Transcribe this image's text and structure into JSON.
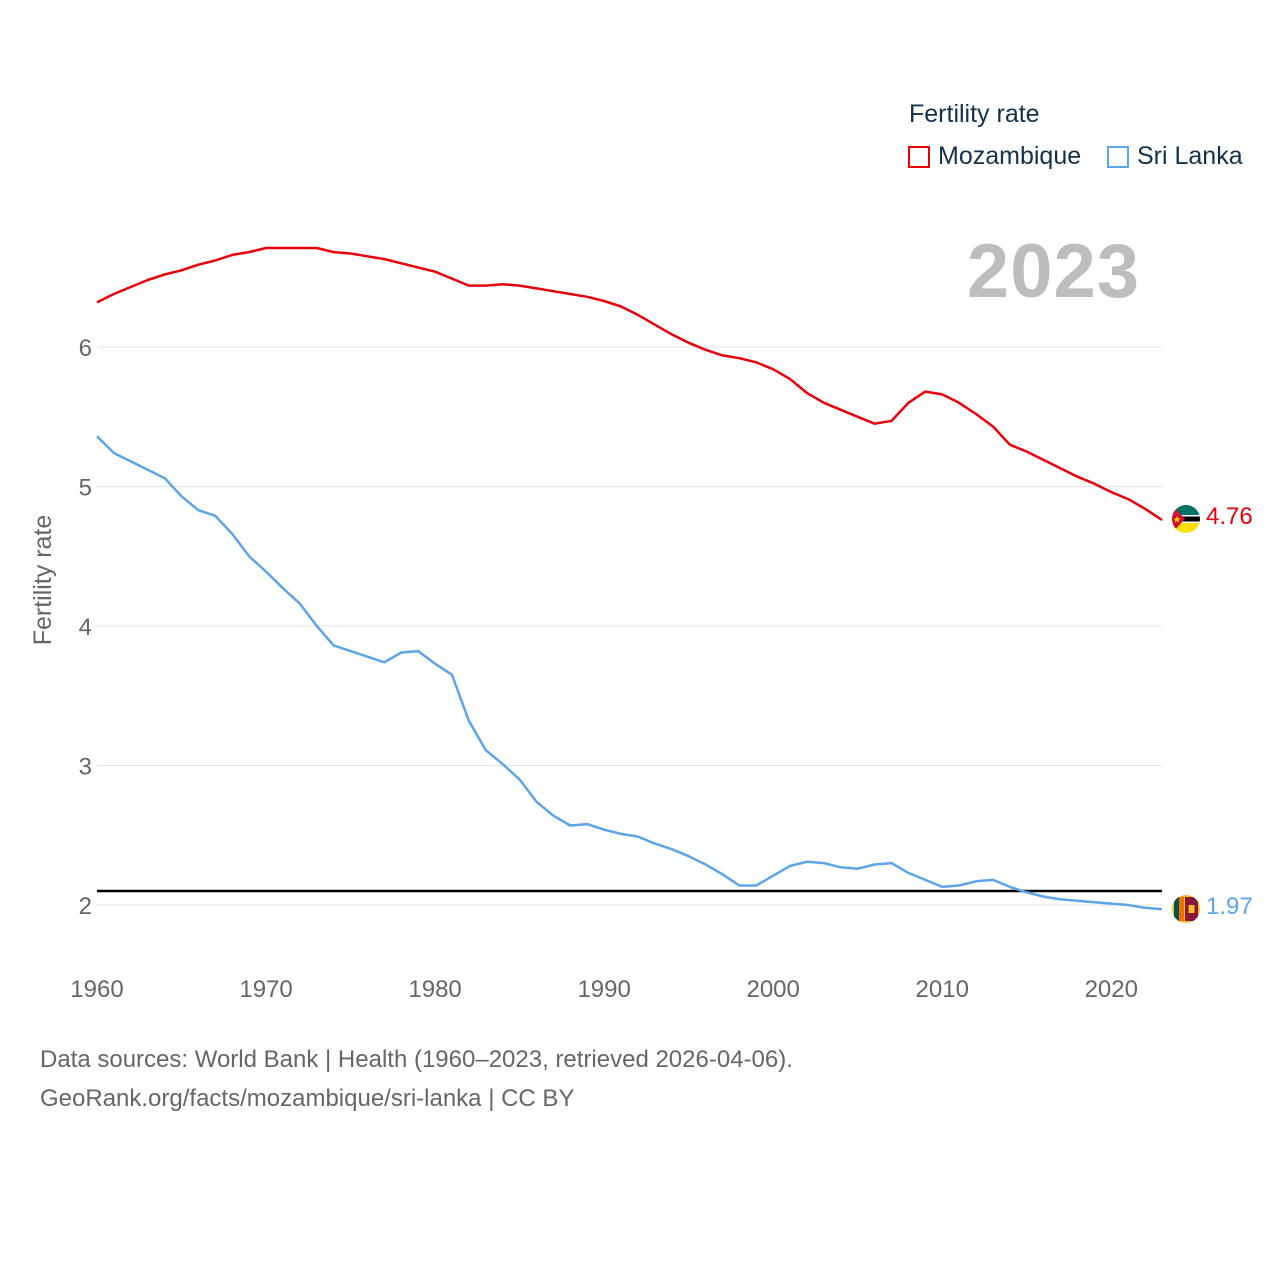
{
  "legend": {
    "title": "Fertility rate",
    "items": [
      {
        "label": "Mozambique",
        "color": "#e8000b"
      },
      {
        "label": "Sri Lanka",
        "color": "#5ba5e8"
      }
    ]
  },
  "year": "2023",
  "footer": {
    "line1": "Data sources: World Bank | Health (1960–2023, retrieved 2026-04-06).",
    "line2": "GeoRank.org/facts/mozambique/sri-lanka | CC BY"
  },
  "end_labels": {
    "mozambique": "4.76",
    "sri_lanka": "1.97"
  },
  "flags": {
    "mozambique": "mozambique-flag-icon",
    "sri_lanka": "sri-lanka-flag-icon"
  },
  "chart_data": {
    "type": "line",
    "title": "",
    "xlabel": "",
    "ylabel": "Fertility rate",
    "xlim": [
      1960,
      2023
    ],
    "ylim": [
      1.75,
      7.0
    ],
    "x_ticks": [
      1960,
      1970,
      1980,
      1990,
      2000,
      2010,
      2020
    ],
    "y_ticks": [
      2,
      3,
      4,
      5,
      6
    ],
    "reference_line": 2.1,
    "x": [
      1960,
      1961,
      1962,
      1963,
      1964,
      1965,
      1966,
      1967,
      1968,
      1969,
      1970,
      1971,
      1972,
      1973,
      1974,
      1975,
      1976,
      1977,
      1978,
      1979,
      1980,
      1981,
      1982,
      1983,
      1984,
      1985,
      1986,
      1987,
      1988,
      1989,
      1990,
      1991,
      1992,
      1993,
      1994,
      1995,
      1996,
      1997,
      1998,
      1999,
      2000,
      2001,
      2002,
      2003,
      2004,
      2005,
      2006,
      2007,
      2008,
      2009,
      2010,
      2011,
      2012,
      2013,
      2014,
      2015,
      2016,
      2017,
      2018,
      2019,
      2020,
      2021,
      2022,
      2023
    ],
    "series": [
      {
        "name": "Mozambique",
        "color": "#e8000b",
        "values": [
          6.32,
          6.38,
          6.43,
          6.48,
          6.52,
          6.55,
          6.59,
          6.62,
          6.66,
          6.68,
          6.71,
          6.71,
          6.71,
          6.71,
          6.68,
          6.67,
          6.65,
          6.63,
          6.6,
          6.57,
          6.54,
          6.49,
          6.44,
          6.44,
          6.45,
          6.44,
          6.42,
          6.4,
          6.38,
          6.36,
          6.33,
          6.29,
          6.23,
          6.16,
          6.09,
          6.03,
          5.98,
          5.94,
          5.92,
          5.89,
          5.84,
          5.77,
          5.67,
          5.6,
          5.55,
          5.5,
          5.45,
          5.47,
          5.6,
          5.68,
          5.66,
          5.6,
          5.52,
          5.43,
          5.3,
          5.25,
          5.19,
          5.13,
          5.07,
          5.02,
          4.96,
          4.91,
          4.84,
          4.76
        ]
      },
      {
        "name": "Sri Lanka",
        "color": "#5ba5e8",
        "values": [
          5.36,
          5.24,
          5.18,
          5.12,
          5.06,
          4.93,
          4.83,
          4.79,
          4.66,
          4.5,
          4.39,
          4.27,
          4.16,
          4.0,
          3.86,
          3.82,
          3.78,
          3.74,
          3.81,
          3.82,
          3.73,
          3.65,
          3.32,
          3.11,
          3.01,
          2.9,
          2.74,
          2.64,
          2.57,
          2.58,
          2.54,
          2.51,
          2.49,
          2.44,
          2.4,
          2.35,
          2.29,
          2.22,
          2.14,
          2.14,
          2.21,
          2.28,
          2.31,
          2.3,
          2.27,
          2.26,
          2.29,
          2.3,
          2.23,
          2.18,
          2.13,
          2.14,
          2.17,
          2.18,
          2.13,
          2.09,
          2.06,
          2.04,
          2.03,
          2.02,
          2.01,
          2.0,
          1.98,
          1.97
        ]
      }
    ]
  }
}
